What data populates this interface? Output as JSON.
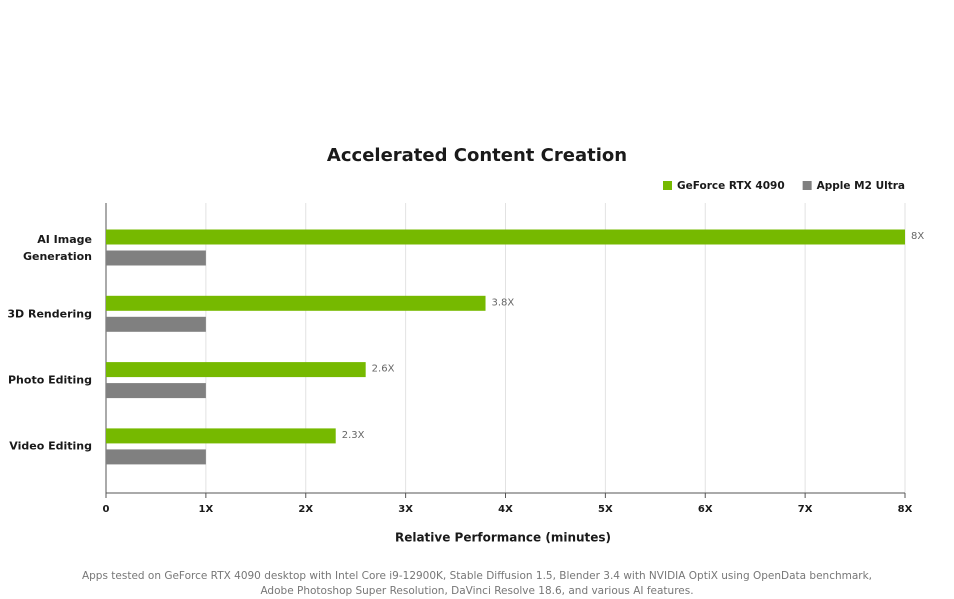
{
  "chart_data": {
    "type": "bar",
    "orientation": "horizontal",
    "title": "Accelerated Content Creation",
    "x_label": "Relative Performance (minutes)",
    "categories": [
      "AI Image\nGeneration",
      "3D Rendering",
      "Photo Editing",
      "Video Editing"
    ],
    "series": [
      {
        "name": "GeForce RTX 4090",
        "color": "#76b900",
        "values": [
          8,
          3.8,
          2.6,
          2.3
        ],
        "value_labels": [
          "8X",
          "3.8X",
          "2.6X",
          "2.3X"
        ]
      },
      {
        "name": "Apple M2 Ultra",
        "color": "#808080",
        "values": [
          1,
          1,
          1,
          1
        ]
      }
    ],
    "xlim": [
      0,
      8
    ],
    "xticks": [
      0,
      {
        "value": 1,
        "label": "1X"
      },
      {
        "value": 2,
        "label": "2X"
      },
      {
        "value": 3,
        "label": "3X"
      },
      {
        "value": 4,
        "label": "4X"
      },
      {
        "value": 5,
        "label": "5X"
      },
      {
        "value": 6,
        "label": "6X"
      },
      {
        "value": 7,
        "label": "7X"
      },
      {
        "value": 8,
        "label": "8X"
      }
    ],
    "grid": true,
    "legend": "top-right",
    "footnote": [
      "Apps tested on GeForce RTX 4090 desktop with Intel Core i9-12900K, Stable Diffusion 1.5, Blender 3.4 with NVIDIA OptiX using OpenData benchmark,",
      "Adobe Photoshop Super Resolution, DaVinci Resolve 18.6, and various AI features."
    ]
  }
}
